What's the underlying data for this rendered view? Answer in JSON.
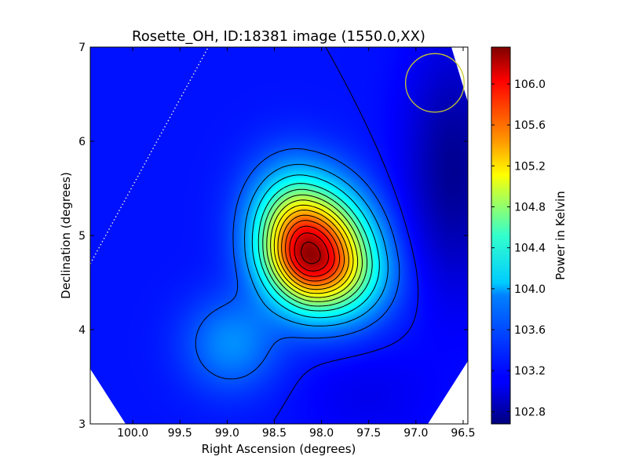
{
  "chart_data": {
    "type": "heatmap",
    "title": "Rosette_OH, ID:18381 image (1550.0,XX)",
    "xlabel": "Right Ascension (degrees)",
    "ylabel": "Declination (degrees)",
    "colorbar_label": "Power in Kelvin",
    "xlim": [
      100.45,
      96.45
    ],
    "ylim": [
      3,
      7
    ],
    "x_ticks": [
      100.0,
      99.5,
      99.0,
      98.5,
      98.0,
      97.5,
      97.0,
      96.5
    ],
    "x_tick_labels": [
      "100.0",
      "99.5",
      "99.0",
      "98.5",
      "98.0",
      "97.5",
      "97.0",
      "96.5"
    ],
    "y_ticks": [
      3,
      4,
      5,
      6,
      7
    ],
    "y_tick_labels": [
      "3",
      "4",
      "5",
      "6",
      "7"
    ],
    "clim": [
      102.68,
      106.36
    ],
    "colorbar_ticks": [
      102.8,
      103.2,
      103.6,
      104.0,
      104.4,
      104.8,
      105.2,
      105.6,
      106.0
    ],
    "colorbar_tick_labels": [
      "102.8",
      "103.2",
      "103.6",
      "104.0",
      "104.4",
      "104.8",
      "105.2",
      "105.6",
      "106.0"
    ],
    "colormap": "jet",
    "peak": {
      "ra": 98.12,
      "dec": 4.8,
      "value": 106.3
    },
    "background_level": 103.2,
    "cold_region": {
      "ra": 96.6,
      "dec": 5.7,
      "value": 102.75
    },
    "contour_levels": [
      103.2,
      103.45,
      103.7,
      103.95,
      104.2,
      104.4,
      104.6,
      104.8,
      105.0,
      105.2,
      105.4,
      105.6,
      105.8,
      106.0,
      106.2
    ],
    "beam_circle": {
      "ra": 96.8,
      "dec": 6.62,
      "radius_deg": 0.31,
      "color": "#c8c832"
    },
    "dotted_line": {
      "from": [
        100.45,
        4.7
      ],
      "to": [
        99.2,
        7.0
      ],
      "color": "#dddddd"
    }
  }
}
